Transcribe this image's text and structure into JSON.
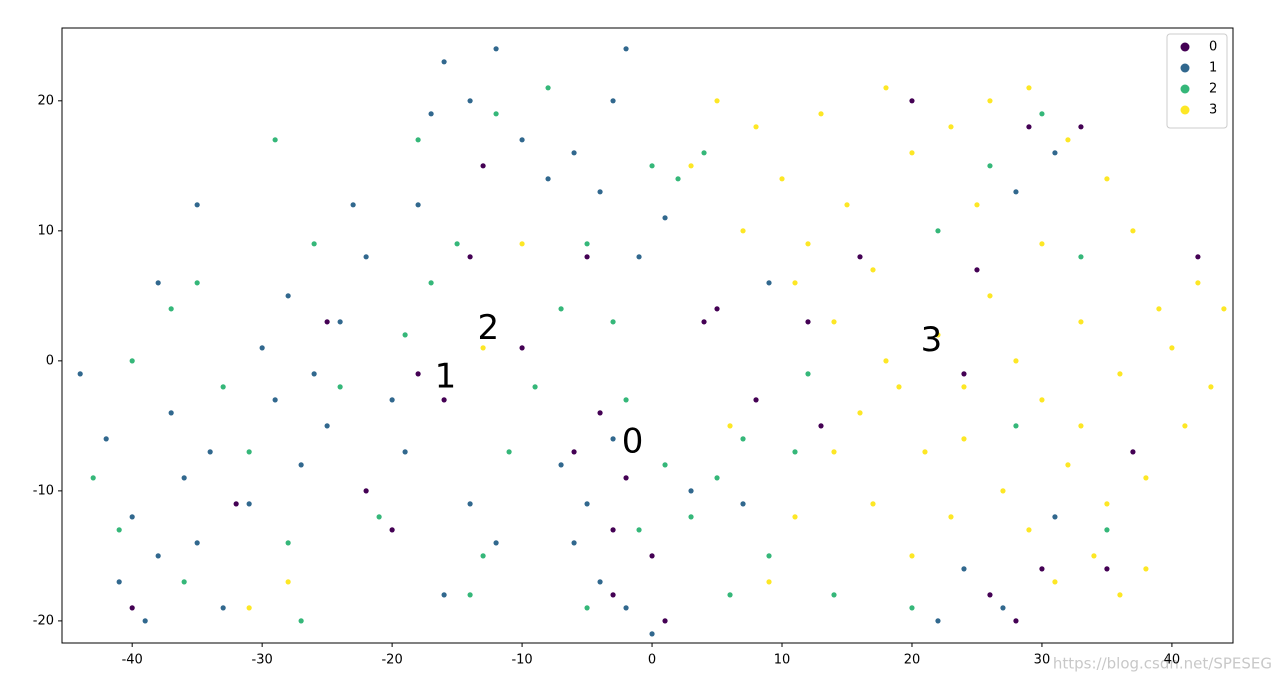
{
  "chart_data": {
    "type": "scatter",
    "xlim": [
      -45.4,
      44.7
    ],
    "ylim": [
      -21.7,
      25.6
    ],
    "xticks": [
      -40,
      -30,
      -20,
      -10,
      0,
      10,
      20,
      30,
      40
    ],
    "yticks": [
      -20,
      -10,
      0,
      10,
      20
    ],
    "legend": "upper right",
    "annotations": [
      {
        "text": "0",
        "x": -1.5,
        "y": -6.3
      },
      {
        "text": "1",
        "x": -15.9,
        "y": -1.3
      },
      {
        "text": "2",
        "x": -12.6,
        "y": 2.4
      },
      {
        "text": "3",
        "x": 21.5,
        "y": 1.5
      }
    ],
    "watermark": "https://blog.csdn.net/SPESEG",
    "series": [
      {
        "name": "0",
        "color": "#440154",
        "x": [
          -16,
          -18,
          -10,
          -4,
          -2,
          0,
          -3,
          5,
          4,
          -5,
          -14,
          -25,
          -32,
          -40,
          -22,
          -6,
          -3,
          13,
          26,
          28,
          30,
          37,
          25,
          12,
          20,
          29,
          33,
          42,
          8,
          1,
          -13,
          24,
          16,
          35,
          -20
        ],
        "values": [
          -3,
          -1,
          1,
          -4,
          -9,
          -15,
          -18,
          4,
          3,
          8,
          8,
          3,
          -11,
          -19,
          -10,
          -7,
          -13,
          -5,
          -18,
          -20,
          -16,
          -7,
          7,
          3,
          20,
          18,
          18,
          8,
          -3,
          -20,
          15,
          -1,
          8,
          -16,
          -13
        ]
      },
      {
        "name": "1",
        "color": "#31688e",
        "x": [
          -42,
          -40,
          -38,
          -36,
          -41,
          -39,
          -35,
          -33,
          -37,
          -34,
          -31,
          -29,
          -27,
          -25,
          -30,
          -28,
          -24,
          -22,
          -26,
          -20,
          -18,
          -16,
          -14,
          -12,
          -17,
          -10,
          -8,
          -6,
          -3,
          -2,
          -4,
          -1,
          1,
          -7,
          -5,
          -3,
          -6,
          -2,
          0,
          -4,
          -14,
          -12,
          -16,
          -44,
          -38,
          24,
          27,
          22,
          31,
          7,
          9,
          28,
          31,
          3,
          -19,
          -23,
          -35
        ],
        "values": [
          -6,
          -12,
          -15,
          -9,
          -17,
          -20,
          -14,
          -19,
          -4,
          -7,
          -11,
          -3,
          -8,
          -5,
          1,
          5,
          3,
          8,
          -1,
          -3,
          12,
          23,
          20,
          24,
          19,
          17,
          14,
          16,
          20,
          24,
          13,
          8,
          11,
          -8,
          -11,
          -6,
          -14,
          -19,
          -21,
          -17,
          -11,
          -14,
          -18,
          -1,
          6,
          -16,
          -19,
          -20,
          -12,
          -11,
          6,
          13,
          16,
          -10,
          -7,
          12,
          12
        ]
      },
      {
        "name": "2",
        "color": "#35b779",
        "x": [
          -43,
          -40,
          -37,
          -35,
          -33,
          -31,
          -28,
          -26,
          -24,
          -21,
          -19,
          -17,
          -15,
          -13,
          -11,
          -14,
          -18,
          -12,
          -8,
          -5,
          -3,
          0,
          2,
          -2,
          -5,
          -1,
          1,
          3,
          5,
          7,
          9,
          12,
          20,
          26,
          30,
          33,
          28,
          35,
          -29,
          -36,
          -41,
          -27,
          -9,
          -7,
          4,
          6,
          11,
          14,
          22
        ],
        "values": [
          -9,
          0,
          4,
          6,
          -2,
          -7,
          -14,
          9,
          -2,
          -12,
          2,
          6,
          9,
          -15,
          -7,
          -18,
          17,
          19,
          21,
          9,
          3,
          15,
          14,
          -3,
          -19,
          -13,
          -8,
          -12,
          -9,
          -6,
          -15,
          -1,
          -19,
          15,
          19,
          8,
          -5,
          -13,
          17,
          -17,
          -13,
          -20,
          -2,
          4,
          16,
          -18,
          -7,
          -18,
          10
        ]
      },
      {
        "name": "3",
        "color": "#fde725",
        "x": [
          8,
          10,
          13,
          15,
          18,
          20,
          23,
          26,
          29,
          32,
          35,
          7,
          11,
          14,
          17,
          19,
          22,
          24,
          26,
          28,
          30,
          33,
          36,
          39,
          42,
          44,
          41,
          38,
          35,
          32,
          29,
          31,
          34,
          36,
          38,
          27,
          23,
          20,
          17,
          14,
          11,
          9,
          6,
          12,
          16,
          21,
          25,
          30,
          37,
          40,
          43,
          3,
          -10,
          -13,
          -28,
          -31,
          5,
          18,
          24,
          33
        ],
        "values": [
          18,
          14,
          19,
          12,
          21,
          16,
          18,
          20,
          21,
          17,
          14,
          10,
          6,
          3,
          7,
          -2,
          2,
          -6,
          5,
          0,
          -3,
          3,
          -1,
          4,
          6,
          4,
          -5,
          -9,
          -11,
          -8,
          -13,
          -17,
          -15,
          -18,
          -16,
          -10,
          -12,
          -15,
          -11,
          -7,
          -12,
          -17,
          -5,
          9,
          -4,
          -7,
          12,
          9,
          10,
          1,
          -2,
          15,
          9,
          1,
          -17,
          -19,
          20,
          0,
          -2,
          -5
        ]
      }
    ]
  }
}
